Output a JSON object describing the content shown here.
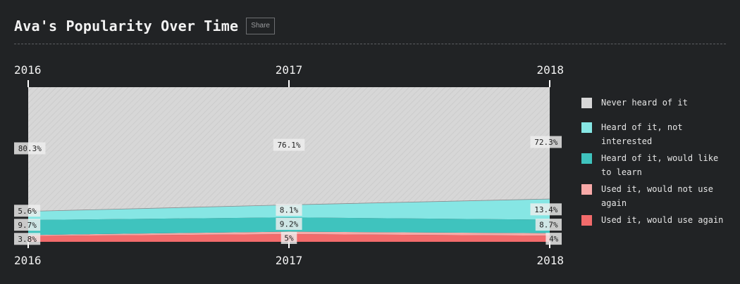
{
  "header": {
    "title": "Ava's Popularity Over Time",
    "share_label": "Share"
  },
  "colors": {
    "background": "#212325",
    "never_heard": "#d7d7d7",
    "not_interested": "#86e6e4",
    "would_like_to_learn": "#3fc3be",
    "would_not_use_again": "#f8a9a8",
    "would_use_again": "#f26b6b"
  },
  "legend": [
    {
      "label": "Never heard of it",
      "color": "#d7d7d7",
      "icon": "square-swatch"
    },
    {
      "label": "Heard of it, not interested",
      "color": "#86e6e4",
      "icon": "square-swatch"
    },
    {
      "label": "Heard of it, would like to learn",
      "color": "#3fc3be",
      "icon": "square-swatch"
    },
    {
      "label": "Used it, would not use again",
      "color": "#f8a9a8",
      "icon": "square-swatch"
    },
    {
      "label": "Used it, would use again",
      "color": "#f26b6b",
      "icon": "square-swatch"
    }
  ],
  "chart_data": {
    "type": "area",
    "stacking": "percent",
    "x": [
      "2016",
      "2017",
      "2018"
    ],
    "legend_position": "right",
    "series": [
      {
        "name": "Used it, would use again",
        "values": [
          3.8,
          5,
          4
        ],
        "labels": [
          "3.8%",
          "5%",
          "4%"
        ]
      },
      {
        "name": "Used it, would not use again",
        "values": [
          0.6,
          1.6,
          1.6
        ],
        "labels": [
          "",
          "",
          ""
        ]
      },
      {
        "name": "Heard of it, would like to learn",
        "values": [
          9.7,
          9.2,
          8.7
        ],
        "labels": [
          "9.7%",
          "9.2%",
          "8.7%"
        ]
      },
      {
        "name": "Heard of it, not interested",
        "values": [
          5.6,
          8.1,
          13.4
        ],
        "labels": [
          "5.6%",
          "8.1%",
          "13.4%"
        ]
      },
      {
        "name": "Never heard of it",
        "values": [
          80.3,
          76.1,
          72.3
        ],
        "labels": [
          "80.3%",
          "76.1%",
          "72.3%"
        ]
      }
    ]
  }
}
